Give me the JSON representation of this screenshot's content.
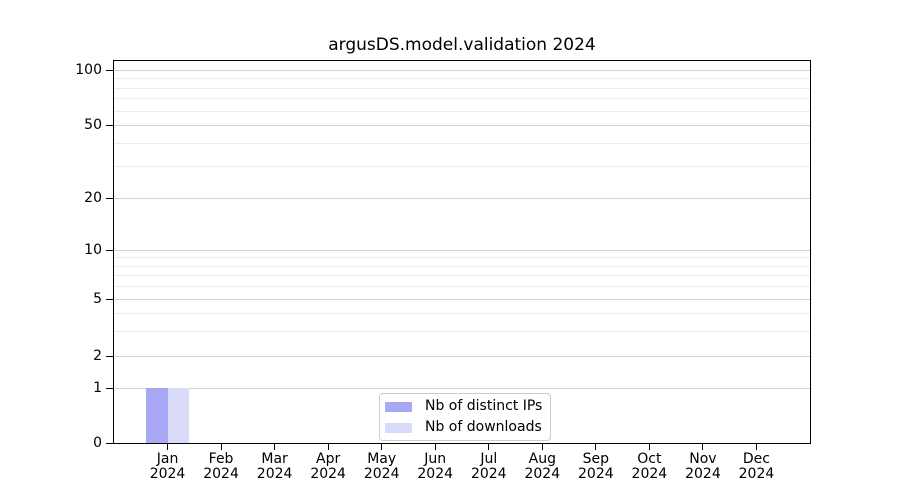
{
  "chart_data": {
    "type": "bar",
    "title": "argusDS.model.validation 2024",
    "categories": [
      "Jan 2024",
      "Feb 2024",
      "Mar 2024",
      "Apr 2024",
      "May 2024",
      "Jun 2024",
      "Jul 2024",
      "Aug 2024",
      "Sep 2024",
      "Oct 2024",
      "Nov 2024",
      "Dec 2024"
    ],
    "x_tick_month_labels": [
      "Jan",
      "Feb",
      "Mar",
      "Apr",
      "May",
      "Jun",
      "Jul",
      "Aug",
      "Sep",
      "Oct",
      "Nov",
      "Dec"
    ],
    "x_tick_year_label": "2024",
    "series": [
      {
        "name": "Nb of distinct IPs",
        "color": "#a8a8f6",
        "values": [
          1,
          0,
          0,
          0,
          0,
          0,
          0,
          0,
          0,
          0,
          0,
          0
        ]
      },
      {
        "name": "Nb of downloads",
        "color": "#dadaf9",
        "values": [
          1,
          0,
          0,
          0,
          0,
          0,
          0,
          0,
          0,
          0,
          0,
          0
        ]
      }
    ],
    "y_axis": {
      "scale": "log-like with 0 baseline",
      "major_ticks": [
        0,
        1,
        2,
        5,
        10,
        20,
        50,
        100
      ],
      "minor_gridlines": [
        3,
        4,
        6,
        7,
        8,
        9,
        30,
        40,
        60,
        70,
        80,
        90
      ],
      "ylim": [
        0,
        113
      ]
    },
    "legend": {
      "location": "lower center",
      "entries": [
        "Nb of distinct IPs",
        "Nb of downloads"
      ]
    },
    "grid": {
      "major": true,
      "minor": true
    }
  },
  "colors": {
    "background": "#ffffff",
    "axis": "#000000",
    "grid_major": "#d2d2d2",
    "grid_minor": "#ececec",
    "legend_border": "#cccccc",
    "text": "#000000",
    "bar_distinct_ips": "#a8a8f6",
    "bar_downloads": "#dadaf9"
  }
}
